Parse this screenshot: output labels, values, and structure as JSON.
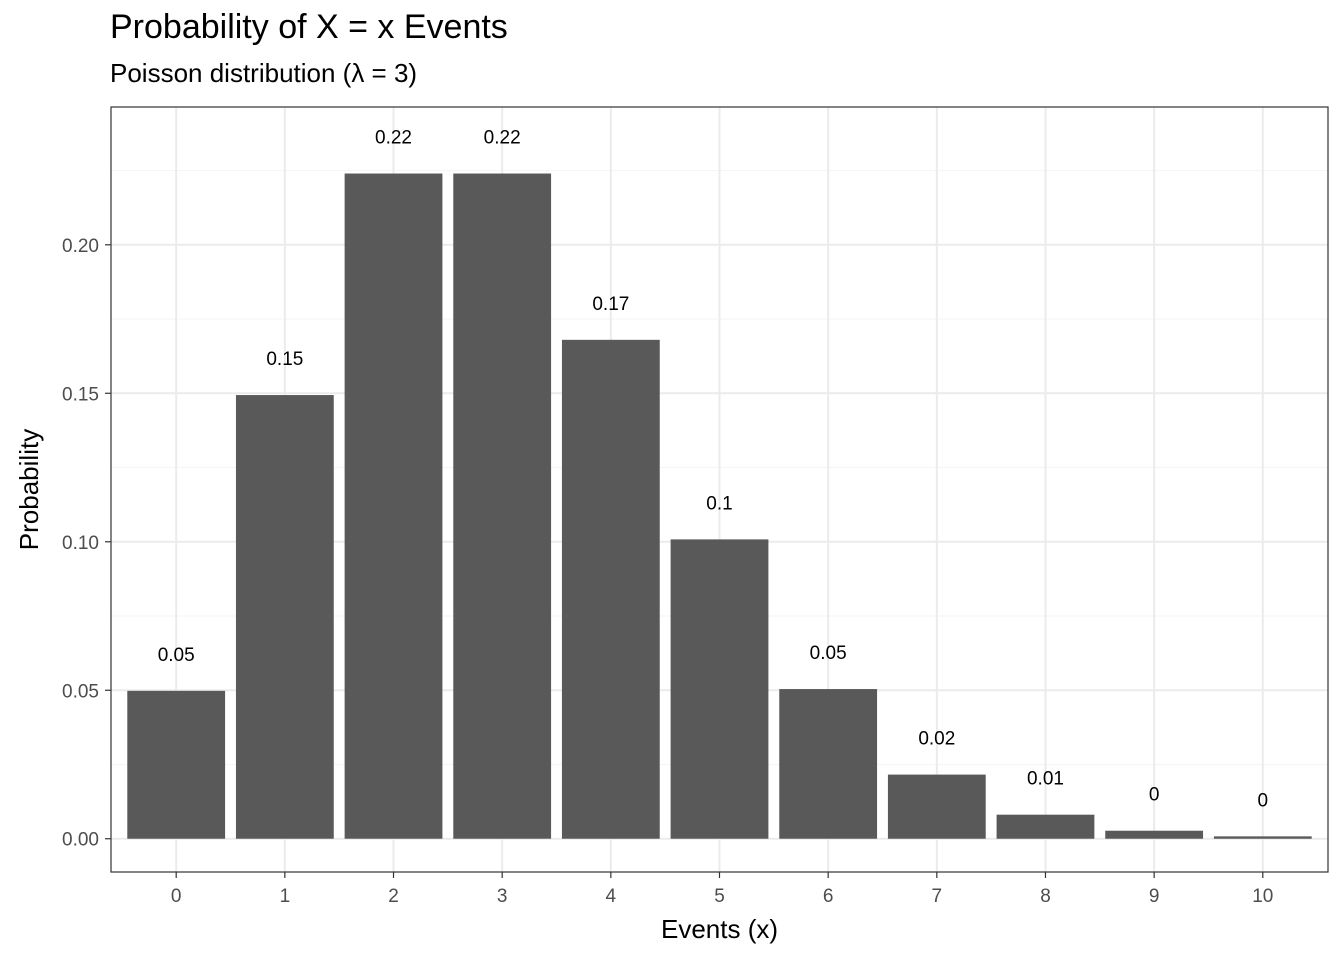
{
  "chart_data": {
    "type": "bar",
    "title": "Probability of X = x Events",
    "subtitle": "Poisson distribution (λ = 3)",
    "xlabel": "Events (x)",
    "ylabel": "Probability",
    "categories": [
      "0",
      "1",
      "2",
      "3",
      "4",
      "5",
      "6",
      "7",
      "8",
      "9",
      "10"
    ],
    "values": [
      0.0498,
      0.1494,
      0.224,
      0.224,
      0.168,
      0.1008,
      0.0504,
      0.0216,
      0.0081,
      0.0027,
      0.0008
    ],
    "data_labels": [
      "0.05",
      "0.15",
      "0.22",
      "0.22",
      "0.17",
      "0.1",
      "0.05",
      "0.02",
      "0.01",
      "0",
      "0"
    ],
    "y_ticks": [
      0,
      0.05,
      0.1,
      0.15,
      0.2
    ],
    "y_tick_labels": [
      "0.00",
      "0.05",
      "0.10",
      "0.15",
      "0.20"
    ],
    "ylim": [
      -0.0112,
      0.2464
    ],
    "grid": true,
    "legend": "none",
    "colors": {
      "bar": "#595959",
      "grid_major": "#ebebeb",
      "grid_minor": "#f5f5f5",
      "panel_border": "#333333",
      "tick_text": "#4d4d4d"
    }
  }
}
